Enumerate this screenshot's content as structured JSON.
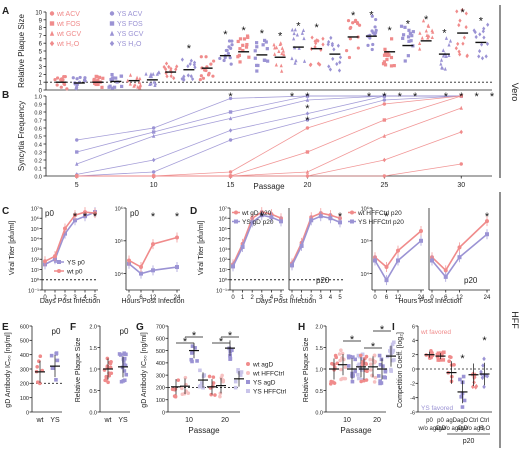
{
  "colors": {
    "wt": "#f08b8b",
    "ys": "#9b93d4",
    "wt_light": "#f7c1c1",
    "ys_light": "#c9c4ea",
    "axis": "#222222",
    "star": "#111111"
  },
  "side_labels": {
    "vero": "Vero",
    "hff": "HFF"
  },
  "chart_data": [
    {
      "panel": "A",
      "type": "scatter",
      "ylabel": "Relative Plaque Size",
      "ylim": [
        0,
        10
      ],
      "yticks": [
        "0",
        "1",
        "2",
        "3",
        "4",
        "5",
        "6",
        "7",
        "8",
        "9",
        "10"
      ],
      "legend": [
        "wt ACV",
        "wt FOS",
        "wt GCV",
        "wt H₂O",
        "YS ACV",
        "YS FOS",
        "YS GCV",
        "YS H₂O"
      ],
      "legend_position": "top-left",
      "groups": 24,
      "group_medians": [
        1.0,
        0.9,
        1.0,
        1.1,
        1.2,
        1.3,
        2.3,
        2.6,
        2.8,
        4.4,
        4.9,
        4.5,
        4.2,
        5.5,
        5.3,
        4.6,
        6.8,
        6.9,
        4.9,
        5.7,
        6.3,
        4.6,
        7.3,
        6.1
      ],
      "starred_groups": [
        7,
        9,
        10,
        11,
        12,
        13,
        14,
        16,
        17,
        18,
        19,
        20,
        21,
        22,
        23
      ]
    },
    {
      "panel": "B",
      "type": "line",
      "ylabel": "Syncytia Frequency",
      "xlabel": "Passage",
      "xlim": [
        3,
        32
      ],
      "xticks": [
        5,
        10,
        15,
        20,
        25,
        30
      ],
      "ylim": [
        0,
        1
      ],
      "yticks": [
        "0.0",
        "0.1",
        "0.2",
        "0.3",
        "0.4",
        "0.5",
        "0.6",
        "0.7",
        "0.8",
        "0.9",
        "1.0"
      ],
      "x": [
        5,
        10,
        15,
        20,
        25,
        30
      ],
      "series": [
        {
          "group": "YS",
          "values": [
            0.45,
            0.6,
            0.97,
            1.0,
            1.0,
            1.0
          ]
        },
        {
          "group": "YS",
          "values": [
            0.3,
            0.55,
            0.8,
            1.0,
            1.0,
            1.0
          ]
        },
        {
          "group": "YS",
          "values": [
            0.15,
            0.5,
            0.72,
            0.95,
            1.0,
            1.0
          ]
        },
        {
          "group": "YS",
          "values": [
            0.02,
            0.2,
            0.57,
            0.78,
            1.0,
            1.0
          ]
        },
        {
          "group": "YS",
          "values": [
            0.0,
            0.05,
            0.45,
            0.7,
            0.95,
            1.0
          ]
        },
        {
          "group": "wt",
          "values": [
            0.0,
            0.0,
            0.05,
            0.6,
            0.9,
            1.0
          ]
        },
        {
          "group": "wt",
          "values": [
            0.0,
            0.0,
            0.0,
            0.3,
            0.7,
            1.0
          ]
        },
        {
          "group": "wt",
          "values": [
            0.0,
            0.0,
            0.0,
            0.05,
            0.5,
            0.85
          ]
        },
        {
          "group": "wt",
          "values": [
            0.0,
            0.0,
            0.0,
            0.0,
            0.2,
            0.55
          ]
        },
        {
          "group": "wt",
          "values": [
            0.0,
            0.0,
            0.0,
            0.0,
            0.0,
            0.15
          ]
        }
      ],
      "star_x": [
        15,
        19,
        20,
        20,
        20,
        24,
        25,
        26,
        27,
        29,
        30,
        31,
        32
      ]
    },
    {
      "panel": "C",
      "type": "line",
      "subpanels": [
        {
          "label": "p0",
          "xlabel": "Days Post Infection",
          "ylabel": "Viral Titer [pfu/ml]",
          "x": [
            0,
            1,
            2,
            3,
            4,
            5
          ],
          "xticks": [
            "0",
            "1",
            "2",
            "3",
            "4",
            "5"
          ],
          "ylim_log10": [
            -1,
            7
          ],
          "yticks": [
            "10⁻¹",
            "10⁰",
            "10¹",
            "10²",
            "10³",
            "10⁴",
            "10⁵",
            "10⁶",
            "10⁷"
          ],
          "detection_limit_log10": 0,
          "series": [
            {
              "name": "YS p0",
              "values_log10": [
                1.5,
                2.0,
                4.5,
                5.8,
                6.2,
                6.6
              ]
            },
            {
              "name": "wt p0",
              "values_log10": [
                1.8,
                2.3,
                5.0,
                6.3,
                6.6,
                6.5
              ]
            }
          ],
          "star_x": [
            3,
            4,
            5
          ]
        },
        {
          "label": "p0",
          "xlabel": "Hours Post Infection",
          "x": [
            0,
            6,
            12,
            24
          ],
          "xticks": [
            "0",
            "6",
            "12",
            "24"
          ],
          "ylim_log10": [
            3.5,
            6
          ],
          "yticks": [
            "10⁴",
            "10⁵",
            "10⁶"
          ],
          "series": [
            {
              "name": "YS p0",
              "values_log10": [
                4.3,
                4.0,
                4.1,
                4.2
              ]
            },
            {
              "name": "wt p0",
              "values_log10": [
                4.4,
                4.2,
                4.9,
                5.1
              ]
            }
          ],
          "star_x": [
            12,
            24
          ]
        }
      ]
    },
    {
      "panel": "D",
      "type": "line",
      "subpanels": [
        {
          "label": "",
          "xlabel": "Days Post Infection",
          "ylabel": "Viral Titer [pfu/ml]",
          "x": [
            0,
            1,
            2,
            3,
            4,
            5
          ],
          "xticks": [
            "0",
            "1",
            "2",
            "3",
            "4",
            "5"
          ],
          "ylim_log10": [
            -1,
            7
          ],
          "yticks": [
            "10⁻¹",
            "10⁰",
            "10¹",
            "10²",
            "10³",
            "10⁴",
            "10⁵",
            "10⁶",
            "10⁷"
          ],
          "detection_limit_log10": 0,
          "series": [
            {
              "name": "wt gD p20",
              "values_log10": [
                1.5,
                3.5,
                6.0,
                6.6,
                6.4,
                6.0
              ]
            },
            {
              "name": "YS gD p20",
              "values_log10": [
                1.3,
                3.2,
                5.6,
                6.3,
                6.1,
                5.7
              ]
            }
          ],
          "star_x": [
            3
          ]
        },
        {
          "label": "p20",
          "xlabel": "",
          "x": [
            0,
            1,
            2,
            3,
            4,
            5
          ],
          "xticks": [
            "0",
            "1",
            "2",
            "3",
            "4",
            "5"
          ],
          "ylim_log10": [
            -1,
            7
          ],
          "detection_limit_log10": 0,
          "series": [
            {
              "name": "wt HFFCtrl p20",
              "values_log10": [
                1.6,
                3.6,
                6.1,
                6.5,
                6.3,
                6.0
              ]
            },
            {
              "name": "YS HFFCtrl p20",
              "values_log10": [
                1.4,
                3.3,
                5.8,
                6.2,
                6.0,
                5.6
              ]
            }
          ],
          "star_x": [
            5
          ]
        },
        {
          "label": "",
          "xlabel": "Hours Post Infection",
          "x": [
            0,
            6,
            12,
            24
          ],
          "xticks": [
            "0",
            "6",
            "12",
            "24"
          ],
          "ylim_log10": [
            3.5,
            6
          ],
          "yticks": [
            "10⁴",
            "10⁵",
            "10⁶"
          ],
          "series": [
            {
              "name": "wt gD p20",
              "values_log10": [
                4.5,
                4.2,
                4.7,
                5.3
              ]
            },
            {
              "name": "YS gD p20",
              "values_log10": [
                4.4,
                3.8,
                4.4,
                5.0
              ]
            }
          ],
          "star_x": [
            6
          ]
        },
        {
          "label": "p20",
          "xlabel": "",
          "x": [
            0,
            6,
            12,
            24
          ],
          "xticks": [
            "0",
            "6",
            "12",
            "24"
          ],
          "ylim_log10": [
            3.5,
            6
          ],
          "series": [
            {
              "name": "wt HFFCtrl p20",
              "values_log10": [
                4.5,
                4.1,
                4.8,
                5.6
              ]
            },
            {
              "name": "YS HFFCtrl p20",
              "values_log10": [
                4.4,
                3.9,
                4.5,
                5.2
              ]
            }
          ],
          "star_x": [
            24
          ]
        }
      ]
    },
    {
      "panel": "E",
      "type": "scatter",
      "label": "p0",
      "ylabel": "gD Antibody IC₅₀ [ng/ml]",
      "categories": [
        "wt",
        "YS"
      ],
      "ylim": [
        0,
        600
      ],
      "yticks": [
        "0",
        "100",
        "200",
        "300",
        "400",
        "500",
        "600"
      ],
      "detection_limit": 200,
      "medians": [
        280,
        320
      ]
    },
    {
      "panel": "F",
      "type": "scatter",
      "label": "p0",
      "ylabel": "Relative Plaque Size",
      "categories": [
        "wt",
        "YS"
      ],
      "ylim": [
        0,
        2
      ],
      "yticks": [
        "0.0",
        "0.5",
        "1.0",
        "1.5",
        "2.0"
      ],
      "medians": [
        1.0,
        1.05
      ]
    },
    {
      "panel": "G",
      "type": "scatter",
      "ylabel": "gD Antibody IC₅₀ [ng/ml]",
      "xlabel": "Passage",
      "categories": [
        "10",
        "20"
      ],
      "ylim": [
        0,
        700
      ],
      "yticks": [
        "0",
        "100",
        "200",
        "300",
        "400",
        "500",
        "600",
        "700"
      ],
      "detection_limit": 200,
      "legend": [
        "wt agD",
        "wt HFFCtrl",
        "YS agD",
        "YS HFFCtrl"
      ],
      "medians": [
        [
          205,
          210,
          500,
          260
        ],
        [
          205,
          215,
          520,
          270
        ]
      ]
    },
    {
      "panel": "H",
      "type": "scatter",
      "ylabel": "Relative Plaque Size",
      "xlabel": "Passage",
      "categories": [
        "10",
        "20"
      ],
      "ylim": [
        0,
        2
      ],
      "yticks": [
        "0.0",
        "0.5",
        "1.0",
        "1.5",
        "2.0"
      ],
      "medians": [
        [
          1.0,
          1.1,
          1.0,
          1.05
        ],
        [
          1.0,
          1.05,
          1.0,
          1.3
        ]
      ]
    },
    {
      "panel": "I",
      "type": "scatter",
      "ylabel": "Competition Coeff. [log₂]",
      "ylim": [
        -6,
        6
      ],
      "yticks": [
        "-6",
        "-4",
        "-2",
        "0",
        "2",
        "4",
        "6"
      ],
      "annotations": [
        "wt favored",
        "YS favored"
      ],
      "categories": [
        "p0 w/o agD",
        "p0 agD",
        "agD w/o agD",
        "agD agD",
        "Ctrl w/o agD",
        "Ctrl H₂O"
      ],
      "group_label": "p20",
      "medians": [
        2.0,
        1.8,
        -0.5,
        -3.2,
        -0.8,
        -0.7
      ],
      "star_categories": [
        3,
        5
      ]
    }
  ]
}
